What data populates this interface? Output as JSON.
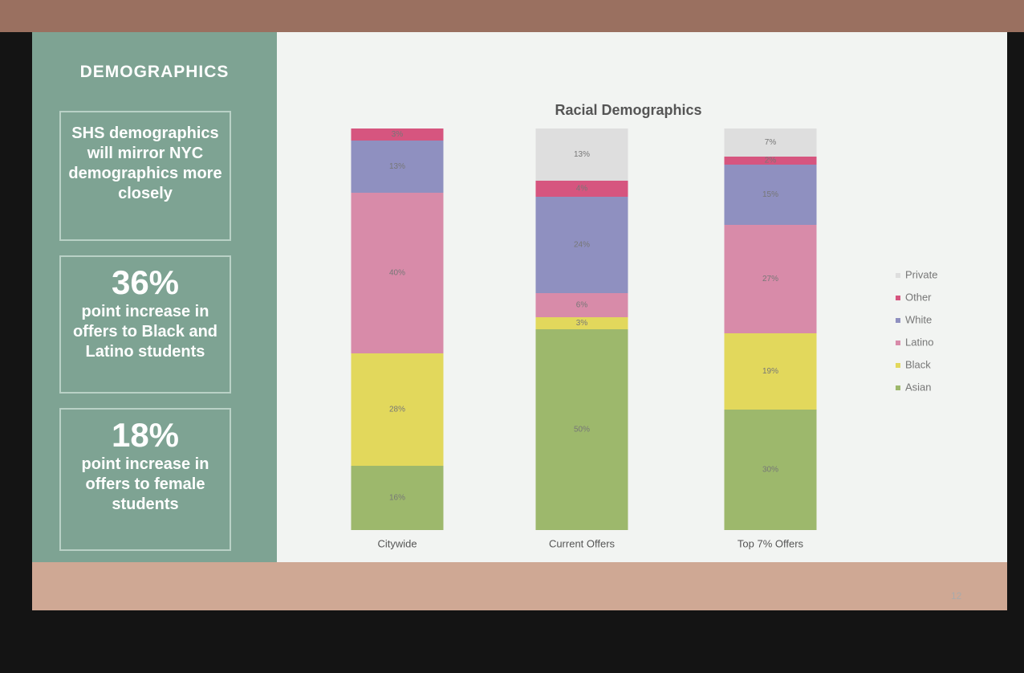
{
  "sidebar": {
    "title": "DEMOGRAPHICS",
    "boxes": [
      {
        "text": "SHS demographics will mirror NYC demographics more closely"
      },
      {
        "figure": "36%",
        "text": "point increase in offers to Black and Latino students"
      },
      {
        "figure": "18%",
        "text": "point increase in offers to female students"
      }
    ]
  },
  "page_number": "12",
  "chart_data": {
    "type": "stacked-bar",
    "title": "Racial Demographics",
    "categories": [
      "Citywide",
      "Current Offers",
      "Top 7% Offers"
    ],
    "ylim": [
      0,
      100
    ],
    "series": [
      {
        "name": "Asian",
        "color": "#9db86c",
        "values": [
          16,
          50,
          30
        ],
        "value_labels": [
          "16%",
          "50%",
          "30%"
        ]
      },
      {
        "name": "Black",
        "color": "#e2d85c",
        "values": [
          28,
          3,
          19
        ],
        "value_labels": [
          "28%",
          "3%",
          "19%"
        ]
      },
      {
        "name": "Latino",
        "color": "#d88ba9",
        "values": [
          40,
          6,
          27
        ],
        "value_labels": [
          "40%",
          "6%",
          "27%"
        ]
      },
      {
        "name": "White",
        "color": "#8f90c0",
        "values": [
          13,
          24,
          15
        ],
        "value_labels": [
          "13%",
          "24%",
          "15%"
        ]
      },
      {
        "name": "Other",
        "color": "#d6557f",
        "values": [
          3,
          4,
          2
        ],
        "value_labels": [
          "3%",
          "4%",
          "2%"
        ]
      },
      {
        "name": "Private",
        "color": "#dedede",
        "values": [
          null,
          13,
          7
        ],
        "value_labels": [
          null,
          "13%",
          "7%"
        ]
      }
    ]
  }
}
